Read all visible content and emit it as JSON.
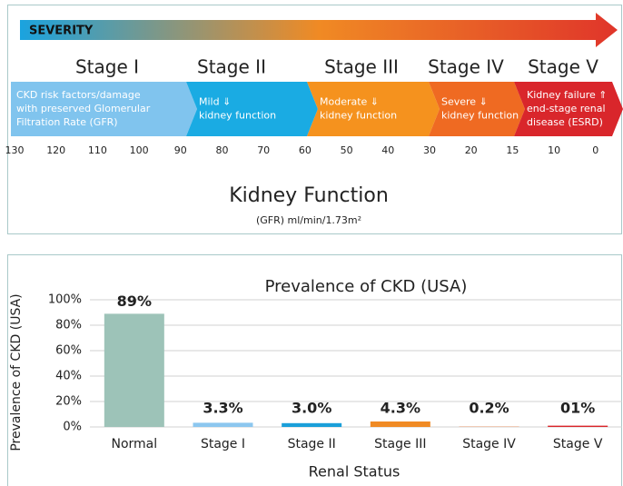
{
  "diagram": {
    "severity": "SEVERITY",
    "stages": [
      {
        "name": "Stage I",
        "color": "#80c4ee",
        "lines": [
          "CKD risk factors/damage",
          "with preserved Glomerular",
          "Filtration Rate (GFR)"
        ]
      },
      {
        "name": "Stage II",
        "color": "#1aabe3",
        "lines": [
          "Mild ⇓",
          "kidney function"
        ]
      },
      {
        "name": "Stage III",
        "color": "#f5921e",
        "lines": [
          "Moderate ⇓",
          "kidney function"
        ]
      },
      {
        "name": "Stage IV",
        "color": "#ef6a22",
        "lines": [
          "Severe ⇓",
          "kidney function"
        ]
      },
      {
        "name": "Stage V",
        "color": "#d9262b",
        "lines": [
          "Kidney failure ⇑",
          "end-stage renal",
          "disease (ESRD)"
        ]
      }
    ],
    "scale": [
      130,
      120,
      110,
      100,
      90,
      80,
      70,
      60,
      50,
      40,
      30,
      20,
      15,
      10,
      0
    ],
    "axis_title": "Kidney Function",
    "axis_unit": "(GFR) ml/min/1.73m²"
  },
  "chart_data": {
    "type": "bar",
    "title": "Prevalence of CKD (USA)",
    "y_label": "Prevalence of CKD (USA)",
    "x_label": "Renal Status",
    "categories": [
      "Normal",
      "Stage I",
      "Stage II",
      "Stage III",
      "Stage IV",
      "Stage V"
    ],
    "values": [
      89,
      3.3,
      3.0,
      4.3,
      0.2,
      1
    ],
    "value_labels": [
      "89%",
      "3.3%",
      "3.0%",
      "4.3%",
      "0.2%",
      "01%"
    ],
    "colors": [
      "#9dc3b8",
      "#8cc7ef",
      "#1a9fd9",
      "#f08a24",
      "#ef6a22",
      "#d9262b"
    ],
    "ylim": [
      0,
      100
    ],
    "yticks": [
      {
        "value": 0,
        "label": "0%"
      },
      {
        "value": 20,
        "label": "20%"
      },
      {
        "value": 40,
        "label": "40%"
      },
      {
        "value": 60,
        "label": "60%"
      },
      {
        "value": 80,
        "label": "80%"
      },
      {
        "value": 100,
        "label": "100%"
      }
    ],
    "grid": true
  }
}
